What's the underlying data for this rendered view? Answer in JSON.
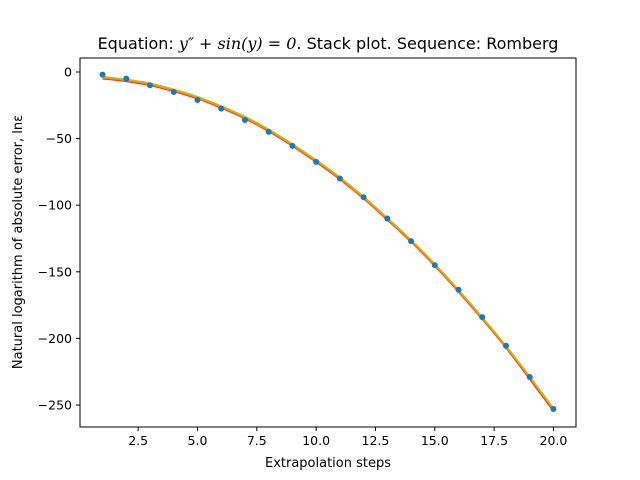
{
  "chart_data": {
    "type": "line",
    "title": "Equation: y'' + sin(y) = 0. Stack plot. Sequence: Romberg",
    "title_parts": {
      "prefix": "Equation: ",
      "math": "y″ + sin(y) = 0",
      "suffix": ". Stack plot. Sequence: Romberg"
    },
    "xlabel": "Extrapolation steps",
    "ylabel": "Natural logarithm of absolute error, lnε",
    "xlim": [
      0.05,
      20.95
    ],
    "ylim": [
      -266.5,
      10.5
    ],
    "xticks": [
      2.5,
      5.0,
      7.5,
      10.0,
      12.5,
      15.0,
      17.5,
      20.0
    ],
    "xtick_labels": [
      "2.5",
      "5.0",
      "7.5",
      "10.0",
      "12.5",
      "15.0",
      "17.5",
      "20.0"
    ],
    "yticks": [
      0,
      -50,
      -100,
      -150,
      -200,
      -250
    ],
    "ytick_labels": [
      "0",
      "−50",
      "−100",
      "−150",
      "−200",
      "−250"
    ],
    "grid": false,
    "legend": "none",
    "points": {
      "color": "#1f77b4",
      "x": [
        1,
        2,
        3,
        4,
        5,
        6,
        7,
        8,
        9,
        10,
        11,
        12,
        13,
        14,
        15,
        16,
        17,
        18,
        19,
        20
      ],
      "y": [
        -2,
        -5,
        -10,
        -15,
        -21,
        -27.5,
        -36,
        -45,
        -55.5,
        -67.5,
        -80,
        -94,
        -110,
        -127,
        -145,
        -163.5,
        -184,
        -205.5,
        -229,
        -253
      ]
    },
    "series": [
      {
        "color": "#d62728",
        "x": [
          1,
          2,
          3,
          4,
          5,
          6,
          7,
          8,
          9,
          10,
          11,
          12,
          13,
          14,
          15,
          16,
          17,
          18,
          19,
          20
        ],
        "y": [
          -5,
          -7,
          -10,
          -14.5,
          -20,
          -27,
          -35,
          -44.5,
          -55.5,
          -67.5,
          -80.5,
          -95,
          -111,
          -127.5,
          -145.5,
          -165,
          -185.5,
          -207,
          -230.5,
          -254.5
        ]
      },
      {
        "color": "#ff7f0e",
        "x": [
          1,
          2,
          3,
          4,
          5,
          6,
          7,
          8,
          9,
          10,
          11,
          12,
          13,
          14,
          15,
          16,
          17,
          18,
          19,
          20
        ],
        "y": [
          -4.5,
          -6.5,
          -9.5,
          -14,
          -19.5,
          -26.5,
          -34.5,
          -44,
          -55,
          -67,
          -80,
          -94.5,
          -110.5,
          -127,
          -145,
          -164.5,
          -185,
          -206.5,
          -229.5,
          -253.5
        ]
      },
      {
        "color": "#bcbd22",
        "x": [
          1,
          2,
          3,
          4,
          5,
          6,
          7,
          8,
          9,
          10,
          11,
          12,
          13,
          14,
          15,
          16,
          17,
          18,
          19,
          20
        ],
        "y": [
          -3.5,
          -5.5,
          -8.5,
          -13,
          -18.5,
          -25.5,
          -33.5,
          -43,
          -54,
          -66,
          -79,
          -93.5,
          -109.5,
          -126,
          -144,
          -163.5,
          -184,
          -205.5,
          -228.5,
          -252.5
        ]
      }
    ]
  }
}
